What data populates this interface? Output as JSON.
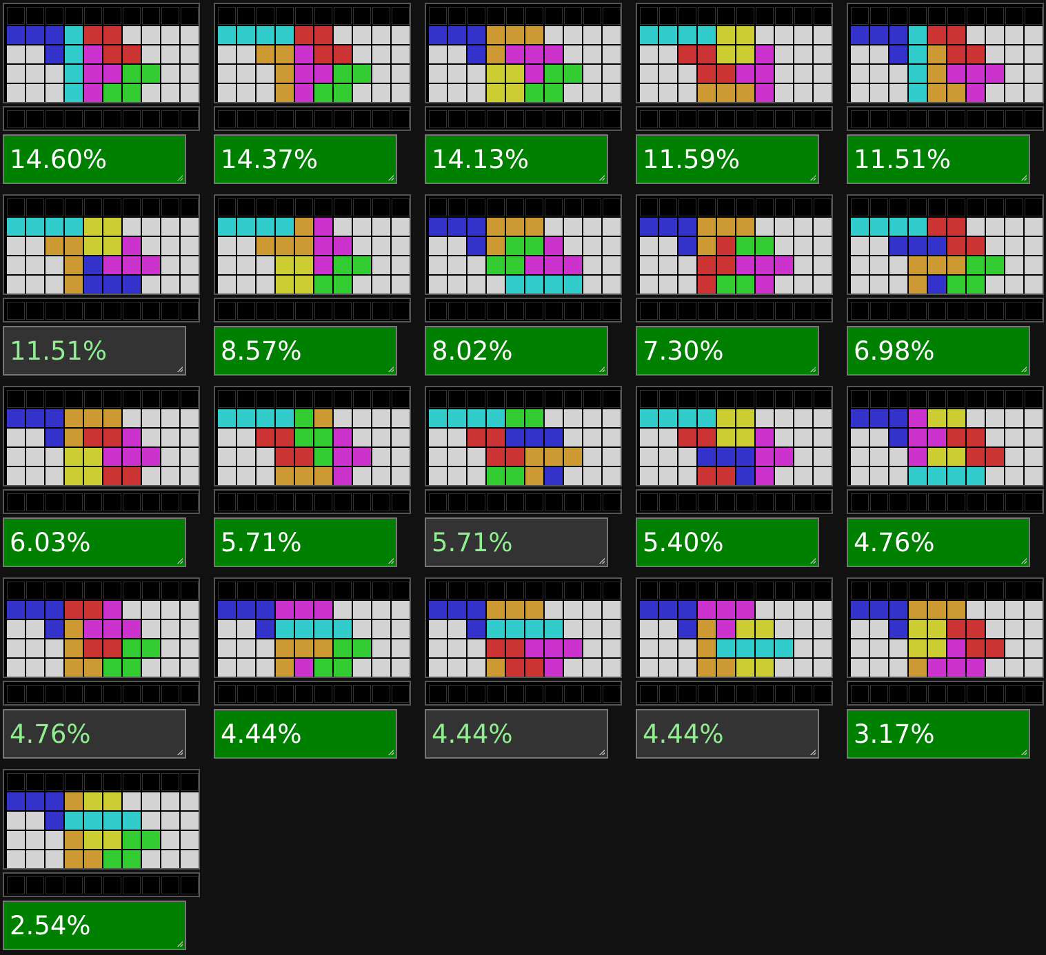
{
  "colors": {
    "B": "#3333cc",
    "C": "#33cccc",
    "R": "#cc3333",
    "M": "#cc33cc",
    "G": "#33cc33",
    "O": "#cc9933",
    "Y": "#cccc33",
    "E": "#d3d3d3",
    "K": "#000000"
  },
  "cards": [
    {
      "percent": "14.60%",
      "selected": true,
      "rows": [
        "BBBCRR....",
        "..BCMRR...",
        "...CMMGG..",
        "...CMGG..."
      ]
    },
    {
      "percent": "14.37%",
      "selected": true,
      "rows": [
        "CCCCRR....",
        "..OOMRR...",
        "...OMMGG..",
        "...OMGG..."
      ]
    },
    {
      "percent": "14.13%",
      "selected": true,
      "rows": [
        "BBBOOO....",
        "..BOMMM...",
        "...YYMGG..",
        "...YYGG..."
      ]
    },
    {
      "percent": "11.59%",
      "selected": true,
      "rows": [
        "CCCCYY....",
        "..RRYYM...",
        "...RRMM...",
        "...OOOM..."
      ]
    },
    {
      "percent": "11.51%",
      "selected": true,
      "rows": [
        "BBBCRR....",
        "..BCORR...",
        "...COMMM..",
        "...COOM..."
      ]
    },
    {
      "percent": "11.51%",
      "selected": false,
      "rows": [
        "CCCCYY....",
        "..OOYYM...",
        "...OBMMM..",
        "...OBBB..."
      ]
    },
    {
      "percent": "8.57%",
      "selected": true,
      "rows": [
        "CCCCOM....",
        "..OOOMM...",
        "...YYMGG..",
        "...YYGG..."
      ]
    },
    {
      "percent": "8.02%",
      "selected": true,
      "rows": [
        "BBBOOO....",
        "..BOGGM...",
        "...GGMMM..",
        "....CCCC.."
      ]
    },
    {
      "percent": "7.30%",
      "selected": true,
      "rows": [
        "BBBOOO....",
        "..BORGG...",
        "...RRMMM..",
        "...RGGM..."
      ]
    },
    {
      "percent": "6.98%",
      "selected": true,
      "rows": [
        "CCCCRR....",
        "..BBBRR...",
        "...OOOGG..",
        "...OBGG..."
      ]
    },
    {
      "percent": "6.03%",
      "selected": true,
      "rows": [
        "BBBOOO....",
        "..BORRM...",
        "...YYMMM..",
        "...YYRR..."
      ]
    },
    {
      "percent": "5.71%",
      "selected": true,
      "rows": [
        "CCCCGO....",
        "..RRGGM...",
        "...RRGMM..",
        "...OOOM..."
      ]
    },
    {
      "percent": "5.71%",
      "selected": false,
      "rows": [
        "CCCCGG....",
        "..RRBBB...",
        "...RROOO..",
        "...GGOB..."
      ]
    },
    {
      "percent": "5.40%",
      "selected": true,
      "rows": [
        "CCCCYY....",
        "..RRYYM...",
        "...BBBMM..",
        "...RRBM..."
      ]
    },
    {
      "percent": "4.76%",
      "selected": true,
      "rows": [
        "BBBMYY....",
        "..BMMRR...",
        "...MYYRR..",
        "...CCCC..."
      ]
    },
    {
      "percent": "4.76%",
      "selected": false,
      "rows": [
        "BBBRRM....",
        "..BOMMM...",
        "...ORRGG..",
        "...OOGG..."
      ]
    },
    {
      "percent": "4.44%",
      "selected": true,
      "rows": [
        "BBBMMM....",
        "..BCCCC...",
        "...OOOGG..",
        "...OMGG..."
      ]
    },
    {
      "percent": "4.44%",
      "selected": false,
      "rows": [
        "BBBOOO....",
        "..BCCCC...",
        "...RRMMM..",
        "...ORRM..."
      ]
    },
    {
      "percent": "4.44%",
      "selected": false,
      "rows": [
        "BBBMMM....",
        "..BOMYY...",
        "...OCCCC..",
        "...OOYY..."
      ]
    },
    {
      "percent": "3.17%",
      "selected": true,
      "rows": [
        "BBBOOO....",
        "..BYYRR...",
        "...YYMRR..",
        "...OMMM..."
      ]
    },
    {
      "percent": "2.54%",
      "selected": true,
      "rows": [
        "BBBOYY....",
        "..BCCCC...",
        "...OYYGG..",
        "...OOGG..."
      ]
    }
  ]
}
